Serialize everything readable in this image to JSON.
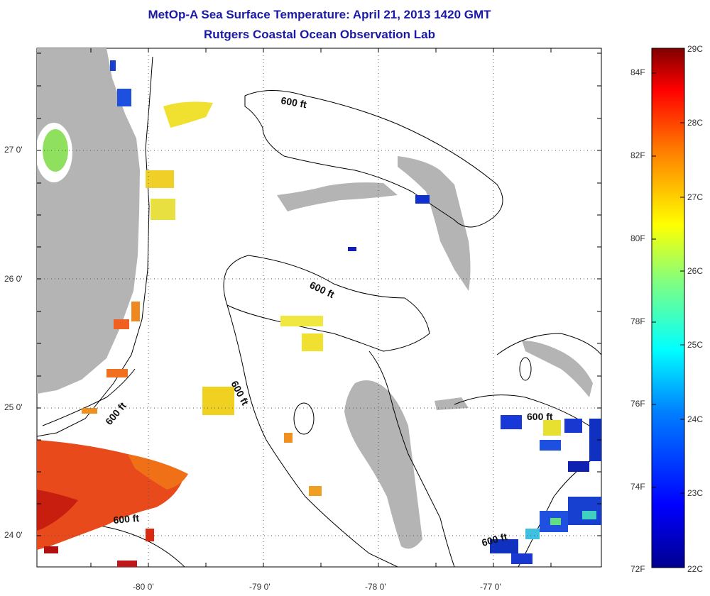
{
  "title": "MetOp-A Sea Surface Temperature:  April 21, 2013 1420 GMT",
  "subtitle": "Rutgers Coastal Ocean Observation Lab",
  "x_ticks": [
    "-80 0'",
    "-79 0'",
    "-78 0'",
    "-77 0'"
  ],
  "y_ticks": [
    "27 0'",
    "26 0'",
    "25 0'",
    "24 0'"
  ],
  "contour_label": "600 ft",
  "colorbar": {
    "fahrenheit_labels": [
      "84F",
      "82F",
      "80F",
      "78F",
      "76F",
      "74F",
      "72F"
    ],
    "celsius_labels": [
      "29C",
      "28C",
      "27C",
      "26C",
      "25C",
      "24C",
      "23C",
      "22C"
    ],
    "range_c": [
      22,
      29
    ],
    "colormap": "jet"
  },
  "colors": {
    "title": "#1a1aa6",
    "land": "#b4b4b4",
    "ocean": "#ffffff",
    "warm": "#e8401c",
    "cool": "#1e3cd2",
    "mid": "#f0e628"
  }
}
